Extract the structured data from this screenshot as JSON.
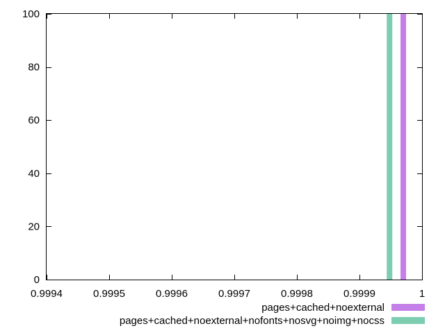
{
  "chart_data": {
    "type": "bar",
    "title": "",
    "xlabel": "",
    "ylabel": "",
    "xlim": [
      0.9994,
      1.0
    ],
    "ylim": [
      0,
      100
    ],
    "x_ticks": [
      0.9994,
      0.9995,
      0.9996,
      0.9997,
      0.9998,
      0.9999,
      1.0
    ],
    "x_tick_labels": [
      "0.9994",
      "0.9995",
      "0.9996",
      "0.9997",
      "0.9998",
      "0.9999",
      "1"
    ],
    "y_ticks": [
      0,
      20,
      40,
      60,
      80,
      100
    ],
    "y_tick_labels": [
      "0",
      "20",
      "40",
      "60",
      "80",
      "100"
    ],
    "grid": false,
    "legend_position": "bottom-right, below plot",
    "series": [
      {
        "name": "pages+cached+noexternal",
        "color": "#c47fe8",
        "x": [
          0.99997
        ],
        "values": [
          100
        ]
      },
      {
        "name": "pages+cached+noexternal+nofonts+nosvg+noimg+nocss",
        "color": "#7dcdb0",
        "x": [
          0.999948
        ],
        "values": [
          100
        ]
      }
    ]
  }
}
